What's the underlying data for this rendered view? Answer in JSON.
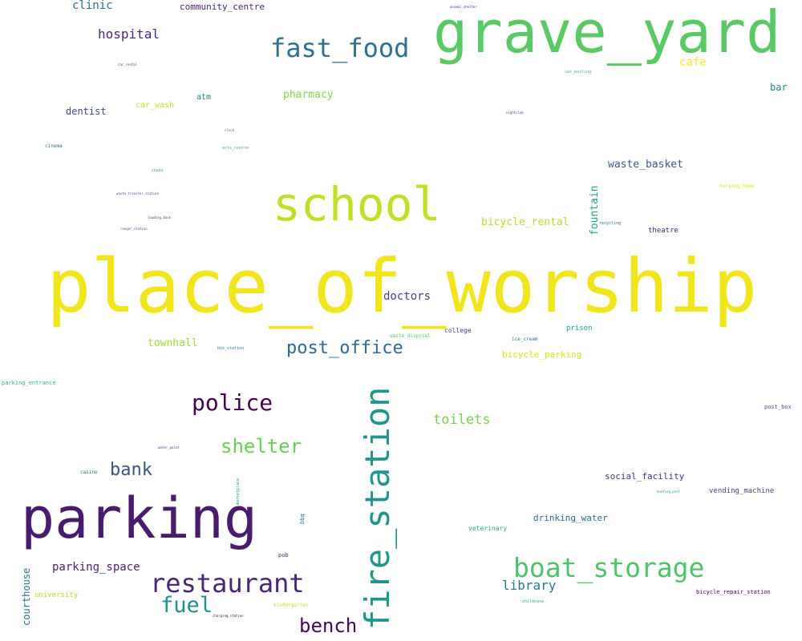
{
  "words": {
    "place_of_worship": {
      "text": "place_of_worship",
      "color": "#f1e51d"
    },
    "grave_yard": {
      "text": "grave_yard",
      "color": "#5ac864"
    },
    "parking": {
      "text": "parking",
      "color": "#481b6d"
    },
    "fire_station": {
      "text": "fire_station",
      "color": "#1f958b"
    },
    "school": {
      "text": "school",
      "color": "#c0df25"
    },
    "boat_storage": {
      "text": "boat_storage",
      "color": "#4ec36b"
    },
    "fast_food": {
      "text": "fast_food",
      "color": "#2c728e"
    },
    "restaurant": {
      "text": "restaurant",
      "color": "#482576"
    },
    "police": {
      "text": "police",
      "color": "#440154"
    },
    "shelter": {
      "text": "shelter",
      "color": "#6ccd5a"
    },
    "fuel": {
      "text": "fuel",
      "color": "#21918c"
    },
    "bench": {
      "text": "bench",
      "color": "#46085c"
    },
    "post_office": {
      "text": "post_office",
      "color": "#31688e"
    },
    "bank": {
      "text": "bank",
      "color": "#3b528b"
    },
    "toilets": {
      "text": "toilets",
      "color": "#7ad151"
    },
    "library": {
      "text": "library",
      "color": "#2a788e"
    },
    "hospital": {
      "text": "hospital",
      "color": "#482878"
    },
    "parking_space": {
      "text": "parking_space",
      "color": "#481f70"
    },
    "doctors": {
      "text": "doctors",
      "color": "#414487"
    },
    "cafe": {
      "text": "cafe",
      "color": "#fde725"
    },
    "clinic": {
      "text": "clinic",
      "color": "#2d708e"
    },
    "pharmacy": {
      "text": "pharmacy",
      "color": "#86d549"
    },
    "waste_basket": {
      "text": "waste_basket",
      "color": "#38598c"
    },
    "bicycle_rental": {
      "text": "bicycle_rental",
      "color": "#b5de2b"
    },
    "fountain": {
      "text": "fountain",
      "color": "#22a785"
    },
    "townhall": {
      "text": "townhall",
      "color": "#a2da37"
    },
    "dentist": {
      "text": "dentist",
      "color": "#3e4a89"
    },
    "bar": {
      "text": "bar",
      "color": "#25858e"
    },
    "courthouse": {
      "text": "courthouse",
      "color": "#2c728e"
    },
    "social_facility": {
      "text": "social_facility",
      "color": "#46337e"
    },
    "drinking_water": {
      "text": "drinking_water",
      "color": "#31688e"
    },
    "bicycle_parking": {
      "text": "bicycle_parking",
      "color": "#d8e219"
    },
    "community_centre": {
      "text": "community_centre",
      "color": "#482475"
    },
    "car_wash": {
      "text": "car_wash",
      "color": "#bddf26"
    },
    "atm": {
      "text": "atm",
      "color": "#277f8e"
    },
    "vending_machine": {
      "text": "vending_machine",
      "color": "#414487"
    },
    "theatre": {
      "text": "theatre",
      "color": "#482173"
    },
    "prison": {
      "text": "prison",
      "color": "#1fa187"
    },
    "university": {
      "text": "university",
      "color": "#b5de2b"
    },
    "college": {
      "text": "college",
      "color": "#433e85"
    },
    "veterinary": {
      "text": "veterinary",
      "color": "#25ab82"
    },
    "bicycle_repair_station": {
      "text": "bicycle_repair_station",
      "color": "#440154"
    },
    "parking_entrance": {
      "text": "parking_entrance",
      "color": "#35b779"
    },
    "post_box": {
      "text": "post_box",
      "color": "#3b528b"
    },
    "nursing_home": {
      "text": "nursing_home",
      "color": "#d8e219"
    },
    "ice_cream": {
      "text": "ice_cream",
      "color": "#2a788e"
    },
    "waste_disposal": {
      "text": "waste_disposal",
      "color": "#5ec962"
    },
    "kindergarten": {
      "text": "kindergarten",
      "color": "#c2df23"
    },
    "pub": {
      "text": "pub",
      "color": "#482878"
    },
    "casino": {
      "text": "casino",
      "color": "#2c728e"
    },
    "bbq": {
      "text": "bbq",
      "color": "#2a788e"
    },
    "marketplace": {
      "text": "marketplace",
      "color": "#1f9e89"
    },
    "bus_station": {
      "text": "bus_station",
      "color": "#26828e"
    },
    "cinema": {
      "text": "cinema",
      "color": "#2a788e"
    },
    "arts_centre": {
      "text": "arts_centre",
      "color": "#3aba76"
    },
    "recycling": {
      "text": "recycling",
      "color": "#306a8e"
    },
    "childcare": {
      "text": "childcare",
      "color": "#22a785"
    },
    "car_pooling": {
      "text": "car_pooling",
      "color": "#3bbb75"
    },
    "charging_station": {
      "text": "charging_station",
      "color": "#440154"
    },
    "car_rental": {
      "text": "car_rental",
      "color": "#3e4c8a"
    },
    "animal_shelter": {
      "text": "animal_shelter",
      "color": "#472d7b"
    },
    "nightclub": {
      "text": "nightclub",
      "color": "#404688"
    },
    "clock": {
      "text": "clock",
      "color": "#2c728e"
    },
    "studio": {
      "text": "studio",
      "color": "#26828e"
    },
    "waste_transfer_station": {
      "text": "waste_transfer_station",
      "color": "#3b528b"
    },
    "loading_dock": {
      "text": "loading_dock",
      "color": "#443983"
    },
    "ranger_station": {
      "text": "ranger_station",
      "color": "#39568c"
    },
    "water_point": {
      "text": "water_point",
      "color": "#453781"
    },
    "hunting_post": {
      "text": "hunting_post",
      "color": "#1fa088"
    }
  }
}
